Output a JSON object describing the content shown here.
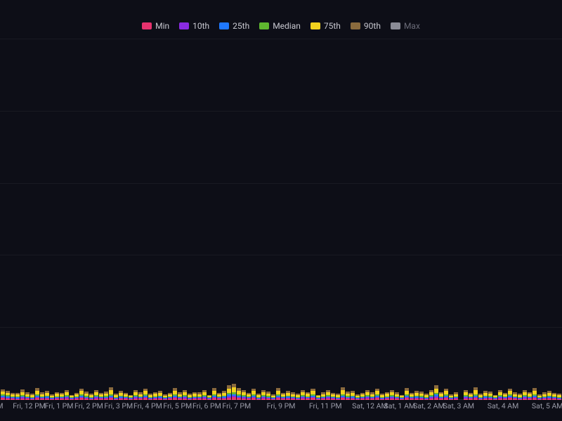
{
  "chart": {
    "type": "stacked-bar-timeseries",
    "background_color": "#0d0e17",
    "grid_color": "rgba(255,255,255,0.05)",
    "ymax": 100,
    "grid_lines": [
      0,
      20,
      40,
      60,
      80,
      100
    ],
    "legend": [
      {
        "key": "min",
        "label": "Min",
        "color": "#e6326e",
        "muted": false
      },
      {
        "key": "p10",
        "label": "10th",
        "color": "#8a2be2",
        "muted": false
      },
      {
        "key": "p25",
        "label": "25th",
        "color": "#1f78ff",
        "muted": false
      },
      {
        "key": "median",
        "label": "Median",
        "color": "#5fb72f",
        "muted": false
      },
      {
        "key": "p75",
        "label": "75th",
        "color": "#f2d21f",
        "muted": false
      },
      {
        "key": "p90",
        "label": "90th",
        "color": "#8a6a3d",
        "muted": false
      },
      {
        "key": "max",
        "label": "Max",
        "color": "#8a8b96",
        "muted": true
      }
    ],
    "x_ticks": [
      {
        "pos": 0.0,
        "label": "M"
      },
      {
        "pos": 0.052,
        "label": "Fri, 12 PM"
      },
      {
        "pos": 0.105,
        "label": "Fri, 1 PM"
      },
      {
        "pos": 0.158,
        "label": "Fri, 2 PM"
      },
      {
        "pos": 0.211,
        "label": "Fri, 3 PM"
      },
      {
        "pos": 0.263,
        "label": "Fri, 4 PM"
      },
      {
        "pos": 0.316,
        "label": "Fri, 5 PM"
      },
      {
        "pos": 0.368,
        "label": "Fri, 6 PM"
      },
      {
        "pos": 0.421,
        "label": "Fri, 7 PM"
      },
      {
        "pos": 0.5,
        "label": "Fri, 9 PM"
      },
      {
        "pos": 0.579,
        "label": "Fri, 11 PM"
      },
      {
        "pos": 0.658,
        "label": "Sat, 12 AM"
      },
      {
        "pos": 0.711,
        "label": "Sat, 1 AM"
      },
      {
        "pos": 0.763,
        "label": "Sat, 2 AM"
      },
      {
        "pos": 0.816,
        "label": "Sat, 3 AM"
      },
      {
        "pos": 0.895,
        "label": "Sat, 4 AM"
      },
      {
        "pos": 0.974,
        "label": "Sat, 5 AM"
      }
    ],
    "bar_count": 114,
    "series_keys_stack_order": [
      "min",
      "p10",
      "p25",
      "median",
      "p75",
      "p90"
    ],
    "data": [
      {
        "min": 0.5,
        "p10": 0.3,
        "p25": 0.3,
        "median": 0.4,
        "p75": 0.8,
        "p90": 0.6
      },
      {
        "min": 0.4,
        "p10": 0.2,
        "p25": 0.4,
        "median": 0.3,
        "p75": 0.7,
        "p90": 0.5
      },
      {
        "min": 0.3,
        "p10": 0.2,
        "p25": 0.2,
        "median": 0.3,
        "p75": 0.5,
        "p90": 0.4
      },
      {
        "min": 0.2,
        "p10": 0.2,
        "p25": 0.3,
        "median": 0.2,
        "p75": 0.6,
        "p90": 0.5
      },
      {
        "min": 0.4,
        "p10": 0.3,
        "p25": 0.3,
        "median": 0.3,
        "p75": 0.9,
        "p90": 0.7
      },
      {
        "min": 0.3,
        "p10": 0.2,
        "p25": 0.2,
        "median": 0.3,
        "p75": 0.6,
        "p90": 0.5
      },
      {
        "min": 0.2,
        "p10": 0.2,
        "p25": 0.2,
        "median": 0.2,
        "p75": 0.5,
        "p90": 0.4
      },
      {
        "min": 0.5,
        "p10": 0.3,
        "p25": 0.4,
        "median": 0.3,
        "p75": 1.0,
        "p90": 0.8
      },
      {
        "min": 0.3,
        "p10": 0.2,
        "p25": 0.3,
        "median": 0.2,
        "p75": 0.6,
        "p90": 0.5
      },
      {
        "min": 0.4,
        "p10": 0.2,
        "p25": 0.3,
        "median": 0.3,
        "p75": 0.8,
        "p90": 0.6
      },
      {
        "min": 0.2,
        "p10": 0.1,
        "p25": 0.2,
        "median": 0.2,
        "p75": 0.4,
        "p90": 0.4
      },
      {
        "min": 0.3,
        "p10": 0.2,
        "p25": 0.2,
        "median": 0.3,
        "p75": 0.7,
        "p90": 0.5
      },
      {
        "min": 0.3,
        "p10": 0.2,
        "p25": 0.3,
        "median": 0.2,
        "p75": 0.5,
        "p90": 0.5
      },
      {
        "min": 0.4,
        "p10": 0.3,
        "p25": 0.3,
        "median": 0.3,
        "p75": 0.9,
        "p90": 0.6
      },
      {
        "min": 0.2,
        "p10": 0.1,
        "p25": 0.2,
        "median": 0.2,
        "p75": 0.4,
        "p90": 0.3
      },
      {
        "min": 0.3,
        "p10": 0.2,
        "p25": 0.2,
        "median": 0.2,
        "p75": 0.6,
        "p90": 0.5
      },
      {
        "min": 0.5,
        "p10": 0.3,
        "p25": 0.4,
        "median": 0.3,
        "p75": 1.0,
        "p90": 0.7
      },
      {
        "min": 0.3,
        "p10": 0.2,
        "p25": 0.3,
        "median": 0.3,
        "p75": 0.7,
        "p90": 0.5
      },
      {
        "min": 0.2,
        "p10": 0.2,
        "p25": 0.2,
        "median": 0.2,
        "p75": 0.5,
        "p90": 0.4
      },
      {
        "min": 0.4,
        "p10": 0.3,
        "p25": 0.3,
        "median": 0.3,
        "p75": 0.8,
        "p90": 0.6
      },
      {
        "min": 0.3,
        "p10": 0.2,
        "p25": 0.2,
        "median": 0.2,
        "p75": 0.6,
        "p90": 0.5
      },
      {
        "min": 0.3,
        "p10": 0.2,
        "p25": 0.3,
        "median": 0.3,
        "p75": 0.7,
        "p90": 0.5
      },
      {
        "min": 0.5,
        "p10": 0.3,
        "p25": 0.4,
        "median": 0.4,
        "p75": 1.1,
        "p90": 0.8
      },
      {
        "min": 0.2,
        "p10": 0.2,
        "p25": 0.2,
        "median": 0.2,
        "p75": 0.5,
        "p90": 0.4
      },
      {
        "min": 0.4,
        "p10": 0.2,
        "p25": 0.3,
        "median": 0.3,
        "p75": 0.8,
        "p90": 0.6
      },
      {
        "min": 0.3,
        "p10": 0.2,
        "p25": 0.2,
        "median": 0.2,
        "p75": 0.6,
        "p90": 0.5
      },
      {
        "min": 0.2,
        "p10": 0.1,
        "p25": 0.2,
        "median": 0.2,
        "p75": 0.4,
        "p90": 0.3
      },
      {
        "min": 0.4,
        "p10": 0.3,
        "p25": 0.3,
        "median": 0.3,
        "p75": 0.9,
        "p90": 0.6
      },
      {
        "min": 0.3,
        "p10": 0.2,
        "p25": 0.2,
        "median": 0.3,
        "p75": 0.6,
        "p90": 0.5
      },
      {
        "min": 0.5,
        "p10": 0.3,
        "p25": 0.4,
        "median": 0.3,
        "p75": 1.0,
        "p90": 0.7
      },
      {
        "min": 0.2,
        "p10": 0.2,
        "p25": 0.2,
        "median": 0.2,
        "p75": 0.5,
        "p90": 0.4
      },
      {
        "min": 0.3,
        "p10": 0.2,
        "p25": 0.3,
        "median": 0.2,
        "p75": 0.7,
        "p90": 0.5
      },
      {
        "min": 0.4,
        "p10": 0.2,
        "p25": 0.3,
        "median": 0.3,
        "p75": 0.8,
        "p90": 0.6
      },
      {
        "min": 0.2,
        "p10": 0.1,
        "p25": 0.2,
        "median": 0.2,
        "p75": 0.4,
        "p90": 0.4
      },
      {
        "min": 0.3,
        "p10": 0.2,
        "p25": 0.2,
        "median": 0.2,
        "p75": 0.6,
        "p90": 0.5
      },
      {
        "min": 0.5,
        "p10": 0.3,
        "p25": 0.4,
        "median": 0.4,
        "p75": 1.0,
        "p90": 0.8
      },
      {
        "min": 0.3,
        "p10": 0.2,
        "p25": 0.3,
        "median": 0.2,
        "p75": 0.6,
        "p90": 0.5
      },
      {
        "min": 0.4,
        "p10": 0.3,
        "p25": 0.3,
        "median": 0.3,
        "p75": 0.9,
        "p90": 0.6
      },
      {
        "min": 0.2,
        "p10": 0.2,
        "p25": 0.2,
        "median": 0.2,
        "p75": 0.5,
        "p90": 0.4
      },
      {
        "min": 0.3,
        "p10": 0.2,
        "p25": 0.2,
        "median": 0.3,
        "p75": 0.7,
        "p90": 0.5
      },
      {
        "min": 0.3,
        "p10": 0.2,
        "p25": 0.3,
        "median": 0.2,
        "p75": 0.6,
        "p90": 0.5
      },
      {
        "min": 0.4,
        "p10": 0.3,
        "p25": 0.3,
        "median": 0.3,
        "p75": 0.8,
        "p90": 0.6
      },
      {
        "min": 0.2,
        "p10": 0.1,
        "p25": 0.2,
        "median": 0.2,
        "p75": 0.4,
        "p90": 0.3
      },
      {
        "min": 0.5,
        "p10": 0.3,
        "p25": 0.4,
        "median": 0.3,
        "p75": 1.1,
        "p90": 0.7
      },
      {
        "min": 0.3,
        "p10": 0.2,
        "p25": 0.2,
        "median": 0.2,
        "p75": 0.6,
        "p90": 0.5
      },
      {
        "min": 0.4,
        "p10": 0.2,
        "p25": 0.3,
        "median": 0.3,
        "p75": 0.8,
        "p90": 0.6
      },
      {
        "min": 0.6,
        "p10": 0.4,
        "p25": 0.5,
        "median": 0.4,
        "p75": 1.3,
        "p90": 0.9
      },
      {
        "min": 0.7,
        "p10": 0.4,
        "p25": 0.5,
        "median": 0.5,
        "p75": 1.4,
        "p90": 1.0
      },
      {
        "min": 0.5,
        "p10": 0.3,
        "p25": 0.4,
        "median": 0.4,
        "p75": 1.0,
        "p90": 0.7
      },
      {
        "min": 0.4,
        "p10": 0.3,
        "p25": 0.3,
        "median": 0.3,
        "p75": 0.8,
        "p90": 0.6
      },
      {
        "min": 0.3,
        "p10": 0.2,
        "p25": 0.2,
        "median": 0.2,
        "p75": 0.6,
        "p90": 0.5
      },
      {
        "min": 0.5,
        "p10": 0.3,
        "p25": 0.4,
        "median": 0.3,
        "p75": 1.0,
        "p90": 0.7
      },
      {
        "min": 0.2,
        "p10": 0.2,
        "p25": 0.2,
        "median": 0.2,
        "p75": 0.5,
        "p90": 0.4
      },
      {
        "min": 0.4,
        "p10": 0.3,
        "p25": 0.3,
        "median": 0.3,
        "p75": 0.9,
        "p90": 0.6
      },
      {
        "min": 0.3,
        "p10": 0.2,
        "p25": 0.3,
        "median": 0.3,
        "p75": 0.7,
        "p90": 0.5
      },
      {
        "min": 0.2,
        "p10": 0.1,
        "p25": 0.2,
        "median": 0.2,
        "p75": 0.4,
        "p90": 0.4
      },
      {
        "min": 0.5,
        "p10": 0.3,
        "p25": 0.4,
        "median": 0.4,
        "p75": 1.0,
        "p90": 0.8
      },
      {
        "min": 0.3,
        "p10": 0.2,
        "p25": 0.2,
        "median": 0.2,
        "p75": 0.6,
        "p90": 0.5
      },
      {
        "min": 0.4,
        "p10": 0.2,
        "p25": 0.3,
        "median": 0.3,
        "p75": 0.8,
        "p90": 0.6
      },
      {
        "min": 0.3,
        "p10": 0.2,
        "p25": 0.3,
        "median": 0.2,
        "p75": 0.6,
        "p90": 0.5
      },
      {
        "min": 0.2,
        "p10": 0.2,
        "p25": 0.2,
        "median": 0.2,
        "p75": 0.5,
        "p90": 0.4
      },
      {
        "min": 0.4,
        "p10": 0.3,
        "p25": 0.3,
        "median": 0.3,
        "p75": 0.9,
        "p90": 0.6
      },
      {
        "min": 0.3,
        "p10": 0.2,
        "p25": 0.2,
        "median": 0.3,
        "p75": 0.7,
        "p90": 0.5
      },
      {
        "min": 0.5,
        "p10": 0.3,
        "p25": 0.4,
        "median": 0.3,
        "p75": 1.0,
        "p90": 0.7
      },
      {
        "min": 0.2,
        "p10": 0.1,
        "p25": 0.2,
        "median": 0.2,
        "p75": 0.4,
        "p90": 0.3
      },
      {
        "min": 0.3,
        "p10": 0.2,
        "p25": 0.3,
        "median": 0.2,
        "p75": 0.6,
        "p90": 0.5
      },
      {
        "min": 0.4,
        "p10": 0.3,
        "p25": 0.3,
        "median": 0.3,
        "p75": 0.8,
        "p90": 0.6
      },
      {
        "min": 0.3,
        "p10": 0.2,
        "p25": 0.2,
        "median": 0.2,
        "p75": 0.6,
        "p90": 0.5
      },
      {
        "min": 0.2,
        "p10": 0.2,
        "p25": 0.2,
        "median": 0.2,
        "p75": 0.5,
        "p90": 0.4
      },
      {
        "min": 0.5,
        "p10": 0.3,
        "p25": 0.4,
        "median": 0.4,
        "p75": 1.1,
        "p90": 0.8
      },
      {
        "min": 0.3,
        "p10": 0.2,
        "p25": 0.3,
        "median": 0.3,
        "p75": 0.7,
        "p90": 0.5
      },
      {
        "min": 0.4,
        "p10": 0.2,
        "p25": 0.3,
        "median": 0.3,
        "p75": 0.8,
        "p90": 0.6
      },
      {
        "min": 0.2,
        "p10": 0.1,
        "p25": 0.2,
        "median": 0.2,
        "p75": 0.4,
        "p90": 0.4
      },
      {
        "min": 0.3,
        "p10": 0.2,
        "p25": 0.2,
        "median": 0.2,
        "p75": 0.6,
        "p90": 0.5
      },
      {
        "min": 0.4,
        "p10": 0.3,
        "p25": 0.3,
        "median": 0.3,
        "p75": 0.9,
        "p90": 0.6
      },
      {
        "min": 0.3,
        "p10": 0.2,
        "p25": 0.3,
        "median": 0.2,
        "p75": 0.6,
        "p90": 0.5
      },
      {
        "min": 0.5,
        "p10": 0.3,
        "p25": 0.4,
        "median": 0.3,
        "p75": 1.0,
        "p90": 0.7
      },
      {
        "min": 0.2,
        "p10": 0.2,
        "p25": 0.2,
        "median": 0.2,
        "p75": 0.5,
        "p90": 0.4
      },
      {
        "min": 0.3,
        "p10": 0.2,
        "p25": 0.2,
        "median": 0.3,
        "p75": 0.7,
        "p90": 0.5
      },
      {
        "min": 0.4,
        "p10": 0.3,
        "p25": 0.3,
        "median": 0.3,
        "p75": 0.8,
        "p90": 0.6
      },
      {
        "min": 0.3,
        "p10": 0.2,
        "p25": 0.3,
        "median": 0.2,
        "p75": 0.6,
        "p90": 0.5
      },
      {
        "min": 0.2,
        "p10": 0.1,
        "p25": 0.2,
        "median": 0.2,
        "p75": 0.4,
        "p90": 0.3
      },
      {
        "min": 0.5,
        "p10": 0.3,
        "p25": 0.4,
        "median": 0.4,
        "p75": 1.0,
        "p90": 0.8
      },
      {
        "min": 0.3,
        "p10": 0.2,
        "p25": 0.2,
        "median": 0.2,
        "p75": 0.6,
        "p90": 0.5
      },
      {
        "min": 0.4,
        "p10": 0.2,
        "p25": 0.3,
        "median": 0.3,
        "p75": 0.8,
        "p90": 0.6
      },
      {
        "min": 0.3,
        "p10": 0.2,
        "p25": 0.3,
        "median": 0.3,
        "p75": 0.7,
        "p90": 0.5
      },
      {
        "min": 0.2,
        "p10": 0.2,
        "p25": 0.2,
        "median": 0.2,
        "p75": 0.5,
        "p90": 0.4
      },
      {
        "min": 0.4,
        "p10": 0.3,
        "p25": 0.3,
        "median": 0.3,
        "p75": 0.9,
        "p90": 0.6
      },
      {
        "min": 0.6,
        "p10": 0.4,
        "p25": 0.5,
        "median": 0.4,
        "p75": 1.2,
        "p90": 0.9
      },
      {
        "min": 0.3,
        "p10": 0.2,
        "p25": 0.2,
        "median": 0.3,
        "p75": 0.7,
        "p90": 0.5
      },
      {
        "min": 0.5,
        "p10": 0.3,
        "p25": 0.4,
        "median": 0.3,
        "p75": 1.0,
        "p90": 0.7
      },
      {
        "min": 0.2,
        "p10": 0.1,
        "p25": 0.2,
        "median": 0.2,
        "p75": 0.4,
        "p90": 0.4
      },
      {
        "min": 0.3,
        "p10": 0.2,
        "p25": 0.3,
        "median": 0.2,
        "p75": 0.6,
        "p90": 0.5
      },
      {
        "min": 0.0,
        "p10": 0.0,
        "p25": 0.0,
        "median": 0.0,
        "p75": 0.0,
        "p90": 0.0
      },
      {
        "min": 0.4,
        "p10": 0.3,
        "p25": 0.3,
        "median": 0.3,
        "p75": 0.8,
        "p90": 0.6
      },
      {
        "min": 0.3,
        "p10": 0.2,
        "p25": 0.2,
        "median": 0.2,
        "p75": 0.6,
        "p90": 0.5
      },
      {
        "min": 0.5,
        "p10": 0.3,
        "p25": 0.4,
        "median": 0.4,
        "p75": 1.1,
        "p90": 0.8
      },
      {
        "min": 0.2,
        "p10": 0.2,
        "p25": 0.2,
        "median": 0.2,
        "p75": 0.5,
        "p90": 0.4
      },
      {
        "min": 0.4,
        "p10": 0.2,
        "p25": 0.3,
        "median": 0.3,
        "p75": 0.8,
        "p90": 0.6
      },
      {
        "min": 0.3,
        "p10": 0.2,
        "p25": 0.3,
        "median": 0.3,
        "p75": 0.7,
        "p90": 0.5
      },
      {
        "min": 0.2,
        "p10": 0.1,
        "p25": 0.2,
        "median": 0.2,
        "p75": 0.4,
        "p90": 0.3
      },
      {
        "min": 0.4,
        "p10": 0.3,
        "p25": 0.3,
        "median": 0.3,
        "p75": 0.9,
        "p90": 0.6
      },
      {
        "min": 0.3,
        "p10": 0.2,
        "p25": 0.2,
        "median": 0.2,
        "p75": 0.6,
        "p90": 0.5
      },
      {
        "min": 0.5,
        "p10": 0.3,
        "p25": 0.4,
        "median": 0.3,
        "p75": 1.0,
        "p90": 0.7
      },
      {
        "min": 0.3,
        "p10": 0.2,
        "p25": 0.3,
        "median": 0.2,
        "p75": 0.6,
        "p90": 0.5
      },
      {
        "min": 0.2,
        "p10": 0.2,
        "p25": 0.2,
        "median": 0.2,
        "p75": 0.5,
        "p90": 0.4
      },
      {
        "min": 0.4,
        "p10": 0.3,
        "p25": 0.3,
        "median": 0.3,
        "p75": 0.8,
        "p90": 0.6
      },
      {
        "min": 0.3,
        "p10": 0.2,
        "p25": 0.2,
        "median": 0.3,
        "p75": 0.7,
        "p90": 0.5
      },
      {
        "min": 0.5,
        "p10": 0.3,
        "p25": 0.4,
        "median": 0.4,
        "p75": 1.0,
        "p90": 0.8
      },
      {
        "min": 0.2,
        "p10": 0.1,
        "p25": 0.2,
        "median": 0.2,
        "p75": 0.4,
        "p90": 0.4
      },
      {
        "min": 0.3,
        "p10": 0.2,
        "p25": 0.3,
        "median": 0.2,
        "p75": 0.6,
        "p90": 0.5
      },
      {
        "min": 0.4,
        "p10": 0.2,
        "p25": 0.3,
        "median": 0.3,
        "p75": 0.8,
        "p90": 0.6
      },
      {
        "min": 0.3,
        "p10": 0.2,
        "p25": 0.2,
        "median": 0.2,
        "p75": 0.6,
        "p90": 0.5
      },
      {
        "min": 0.2,
        "p10": 0.2,
        "p25": 0.2,
        "median": 0.2,
        "p75": 0.5,
        "p90": 0.4
      }
    ]
  }
}
